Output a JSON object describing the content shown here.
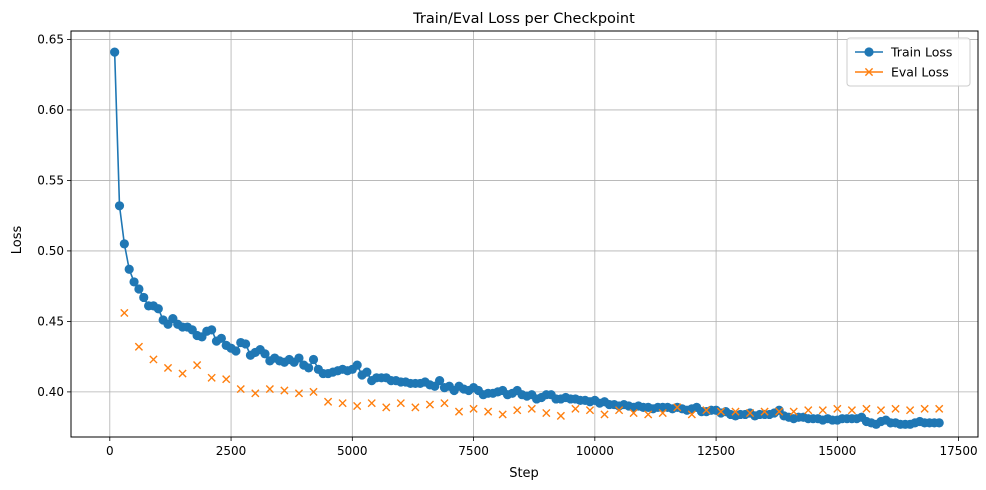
{
  "chart_data": {
    "type": "line",
    "title": "Train/Eval Loss per Checkpoint",
    "xlabel": "Step",
    "ylabel": "Loss",
    "xlim": [
      -800,
      17900
    ],
    "ylim": [
      0.368,
      0.656
    ],
    "xticks": [
      0,
      2500,
      5000,
      7500,
      10000,
      12500,
      15000,
      17500
    ],
    "xtick_labels": [
      "0",
      "2500",
      "5000",
      "7500",
      "10000",
      "12500",
      "15000",
      "17500"
    ],
    "yticks": [
      0.4,
      0.45,
      0.5,
      0.55,
      0.6,
      0.65
    ],
    "ytick_labels": [
      "0.40",
      "0.45",
      "0.50",
      "0.55",
      "0.60",
      "0.65"
    ],
    "grid": true,
    "legend_position": "top-right",
    "series": [
      {
        "name": "Train Loss",
        "color": "#1f77b4",
        "marker": "circle",
        "line": true,
        "x": [
          100,
          200,
          300,
          400,
          500,
          600,
          700,
          800,
          900,
          1000,
          1100,
          1200,
          1300,
          1400,
          1500,
          1600,
          1700,
          1800,
          1900,
          2000,
          2100,
          2200,
          2300,
          2400,
          2500,
          2600,
          2700,
          2800,
          2900,
          3000,
          3100,
          3200,
          3300,
          3400,
          3500,
          3600,
          3700,
          3800,
          3900,
          4000,
          4100,
          4200,
          4300,
          4400,
          4500,
          4600,
          4700,
          4800,
          4900,
          5000,
          5100,
          5200,
          5300,
          5400,
          5500,
          5600,
          5700,
          5800,
          5900,
          6000,
          6100,
          6200,
          6300,
          6400,
          6500,
          6600,
          6700,
          6800,
          6900,
          7000,
          7100,
          7200,
          7300,
          7400,
          7500,
          7600,
          7700,
          7800,
          7900,
          8000,
          8100,
          8200,
          8300,
          8400,
          8500,
          8600,
          8700,
          8800,
          8900,
          9000,
          9100,
          9200,
          9300,
          9400,
          9500,
          9600,
          9700,
          9800,
          9900,
          10000,
          10100,
          10200,
          10300,
          10400,
          10500,
          10600,
          10700,
          10800,
          10900,
          11000,
          11100,
          11200,
          11300,
          11400,
          11500,
          11600,
          11700,
          11800,
          11900,
          12000,
          12100,
          12200,
          12300,
          12400,
          12500,
          12600,
          12700,
          12800,
          12900,
          13000,
          13100,
          13200,
          13300,
          13400,
          13500,
          13600,
          13700,
          13800,
          13900,
          14000,
          14100,
          14200,
          14300,
          14400,
          14500,
          14600,
          14700,
          14800,
          14900,
          15000,
          15100,
          15200,
          15300,
          15400,
          15500,
          15600,
          15700,
          15800,
          15900,
          16000,
          16100,
          16200,
          16300,
          16400,
          16500,
          16600,
          16700,
          16800,
          16900,
          17000,
          17100
        ],
        "values": [
          0.641,
          0.532,
          0.505,
          0.487,
          0.478,
          0.473,
          0.467,
          0.461,
          0.461,
          0.459,
          0.451,
          0.448,
          0.452,
          0.448,
          0.446,
          0.446,
          0.444,
          0.44,
          0.439,
          0.443,
          0.444,
          0.436,
          0.438,
          0.433,
          0.431,
          0.429,
          0.435,
          0.434,
          0.426,
          0.428,
          0.43,
          0.427,
          0.422,
          0.424,
          0.422,
          0.421,
          0.423,
          0.421,
          0.424,
          0.419,
          0.417,
          0.423,
          0.416,
          0.413,
          0.413,
          0.414,
          0.415,
          0.416,
          0.415,
          0.416,
          0.419,
          0.412,
          0.414,
          0.408,
          0.41,
          0.41,
          0.41,
          0.408,
          0.408,
          0.407,
          0.407,
          0.406,
          0.406,
          0.406,
          0.407,
          0.405,
          0.404,
          0.408,
          0.403,
          0.404,
          0.401,
          0.404,
          0.402,
          0.401,
          0.403,
          0.401,
          0.398,
          0.399,
          0.399,
          0.4,
          0.401,
          0.398,
          0.399,
          0.401,
          0.398,
          0.397,
          0.398,
          0.395,
          0.396,
          0.398,
          0.398,
          0.395,
          0.395,
          0.396,
          0.395,
          0.395,
          0.394,
          0.394,
          0.393,
          0.394,
          0.392,
          0.393,
          0.391,
          0.391,
          0.39,
          0.391,
          0.39,
          0.389,
          0.39,
          0.389,
          0.389,
          0.388,
          0.389,
          0.389,
          0.389,
          0.388,
          0.389,
          0.388,
          0.387,
          0.388,
          0.389,
          0.386,
          0.386,
          0.387,
          0.387,
          0.385,
          0.386,
          0.384,
          0.383,
          0.384,
          0.384,
          0.385,
          0.383,
          0.384,
          0.384,
          0.384,
          0.385,
          0.387,
          0.383,
          0.382,
          0.381,
          0.382,
          0.382,
          0.381,
          0.381,
          0.381,
          0.38,
          0.381,
          0.38,
          0.38,
          0.381,
          0.381,
          0.381,
          0.381,
          0.382,
          0.379,
          0.378,
          0.377,
          0.379,
          0.38,
          0.378,
          0.378,
          0.377,
          0.377,
          0.377,
          0.378,
          0.379,
          0.378,
          0.378,
          0.378,
          0.378
        ]
      },
      {
        "name": "Eval Loss",
        "color": "#ff7f0e",
        "marker": "x",
        "line": false,
        "x": [
          300,
          600,
          900,
          1200,
          1500,
          1800,
          2100,
          2400,
          2700,
          3000,
          3300,
          3600,
          3900,
          4200,
          4500,
          4800,
          5100,
          5400,
          5700,
          6000,
          6300,
          6600,
          6900,
          7200,
          7500,
          7800,
          8100,
          8400,
          8700,
          9000,
          9300,
          9600,
          9900,
          10200,
          10500,
          10800,
          11100,
          11400,
          11700,
          12000,
          12300,
          12600,
          12900,
          13200,
          13500,
          13800,
          14100,
          14400,
          14700,
          15000,
          15300,
          15600,
          15900,
          16200,
          16500,
          16800,
          17100
        ],
        "values": [
          0.456,
          0.432,
          0.423,
          0.417,
          0.413,
          0.419,
          0.41,
          0.409,
          0.402,
          0.399,
          0.402,
          0.401,
          0.399,
          0.4,
          0.393,
          0.392,
          0.39,
          0.392,
          0.389,
          0.392,
          0.389,
          0.391,
          0.392,
          0.386,
          0.388,
          0.386,
          0.384,
          0.387,
          0.388,
          0.385,
          0.383,
          0.388,
          0.387,
          0.384,
          0.387,
          0.385,
          0.384,
          0.385,
          0.389,
          0.384,
          0.387,
          0.386,
          0.386,
          0.385,
          0.386,
          0.386,
          0.386,
          0.387,
          0.387,
          0.388,
          0.387,
          0.388,
          0.387,
          0.388,
          0.387,
          0.388,
          0.388
        ]
      }
    ]
  }
}
